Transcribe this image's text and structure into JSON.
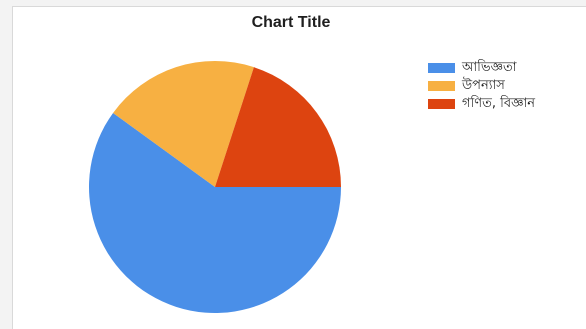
{
  "chart_data": {
    "type": "pie",
    "title": "Chart Title",
    "legend_position": "top-right",
    "slices": [
      {
        "label": "আভিজ্ঞতা",
        "value": 60,
        "color": "#4a8fe8"
      },
      {
        "label": "উপন্যাস",
        "value": 20,
        "color": "#f7b042"
      },
      {
        "label": "গণিত, বিজ্ঞান",
        "value": 20,
        "color": "#dd4410"
      }
    ]
  }
}
